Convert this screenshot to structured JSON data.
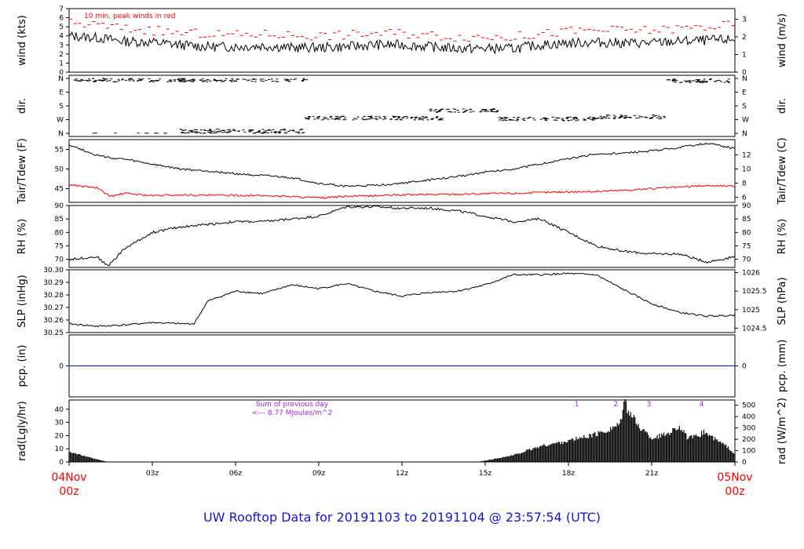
{
  "title": "UW Rooftop Data for 20191103  to  20191104 @ 23:57:54  (UTC)",
  "colors": {
    "black": "#000000",
    "red": "#ff0000",
    "blue": "#0000ff",
    "purple": "#a020f0",
    "title": "#1414d2"
  },
  "x_axis": {
    "start_label": [
      "04Nov",
      "00z"
    ],
    "end_label": [
      "05Nov",
      "00z"
    ],
    "ticks": [
      "03z",
      "06z",
      "09z",
      "12z",
      "15z",
      "18z",
      "21z"
    ]
  },
  "chart_data": [
    {
      "type": "line",
      "panel": "wind",
      "ylabel_left": "wind (kts)",
      "ylabel_right": "wind (m/s)",
      "ylim": [
        0,
        7
      ],
      "yticks_left": [
        0,
        1,
        2,
        3,
        4,
        5,
        6,
        7
      ],
      "yticks_right": [
        "0",
        "1",
        "2",
        "3"
      ],
      "annotation": "10 min. peak winds in red",
      "x_hours": [
        0,
        1,
        2,
        3,
        4,
        5,
        6,
        7,
        8,
        9,
        10,
        11,
        12,
        13,
        14,
        15,
        16,
        17,
        18,
        19,
        20,
        21,
        22,
        23,
        24
      ],
      "series": [
        {
          "values": [
            4.0,
            3.8,
            3.4,
            3.3,
            3.0,
            2.8,
            2.8,
            2.9,
            2.7,
            2.7,
            2.8,
            3.0,
            3.0,
            2.8,
            2.6,
            2.6,
            2.6,
            3.0,
            3.2,
            3.3,
            3.2,
            3.2,
            3.4,
            3.5,
            3.6
          ],
          "color": "#000000"
        },
        {
          "values": [
            5.4,
            5.2,
            4.8,
            4.6,
            4.3,
            4.2,
            4.1,
            4.2,
            4.1,
            4.0,
            4.1,
            4.3,
            4.3,
            4.1,
            3.9,
            3.9,
            3.9,
            4.2,
            4.5,
            4.6,
            4.6,
            4.6,
            4.8,
            5.0,
            5.2
          ],
          "color": "#ff0000"
        }
      ]
    },
    {
      "type": "scatter",
      "panel": "direction",
      "ylabel_left": "dir.",
      "ylabel_right": "dir.",
      "yticks_left": [
        "N",
        "W",
        "S",
        "E",
        "N"
      ],
      "yticks_right": [
        "N",
        "W",
        "S",
        "E",
        "N"
      ],
      "segments": [
        {
          "x": [
            0.2,
            8.8
          ],
          "dir": 350
        },
        {
          "x": [
            4.0,
            8.5
          ],
          "dir": 15
        },
        {
          "x": [
            8.5,
            13.5
          ],
          "dir": 100
        },
        {
          "x": [
            13.0,
            15.5
          ],
          "dir": 150
        },
        {
          "x": [
            15.5,
            19.0
          ],
          "dir": 95
        },
        {
          "x": [
            19.0,
            21.5
          ],
          "dir": 108
        },
        {
          "x": [
            21.5,
            23.8
          ],
          "dir": 345
        }
      ]
    },
    {
      "type": "line",
      "panel": "temperature",
      "ylabel_left": "Tair/Tdew (F)",
      "ylabel_right": "Tair/Tdew (C)",
      "ylim": [
        41.5,
        57.5
      ],
      "yticks_left": [
        45,
        50,
        55
      ],
      "yticks_right": [
        "6",
        "8",
        "10",
        "12"
      ],
      "x_hours": [
        0,
        1,
        1.5,
        2,
        3,
        4,
        5,
        6,
        7,
        8,
        9,
        10,
        11,
        12,
        13,
        14,
        15,
        16,
        17,
        18,
        19,
        20,
        21,
        22,
        23,
        24
      ],
      "series": [
        {
          "name": "Tair",
          "values": [
            56.2,
            53.5,
            52.8,
            52.5,
            51.2,
            50.0,
            49.5,
            48.8,
            48.3,
            47.8,
            46.3,
            45.6,
            45.8,
            46.4,
            47.2,
            48.1,
            49.2,
            50.0,
            51.3,
            52.6,
            53.8,
            54.0,
            54.6,
            55.5,
            56.6,
            55.2
          ],
          "color": "#000000"
        },
        {
          "name": "Tdew",
          "values": [
            46.0,
            45.2,
            43.0,
            43.8,
            43.2,
            43.4,
            43.3,
            43.3,
            43.2,
            43.0,
            42.6,
            43.0,
            43.2,
            43.4,
            43.5,
            43.6,
            43.7,
            43.8,
            44.0,
            44.2,
            44.3,
            44.6,
            45.0,
            45.4,
            45.8,
            45.6
          ],
          "color": "#ff0000"
        }
      ]
    },
    {
      "type": "line",
      "panel": "humidity",
      "ylabel_left": "RH (%)",
      "ylabel_right": "RH (%)",
      "ylim": [
        67,
        90
      ],
      "yticks_left": [
        70,
        75,
        80,
        85,
        90
      ],
      "yticks_right": [
        "70",
        "75",
        "80",
        "85",
        "90"
      ],
      "x_hours": [
        0,
        1,
        1.4,
        2,
        3,
        4,
        5,
        6,
        7,
        8,
        9,
        10,
        11,
        12,
        13,
        14,
        15,
        16,
        17,
        18,
        19,
        20,
        21,
        22,
        23,
        24
      ],
      "series": [
        {
          "values": [
            70,
            71,
            67.5,
            74,
            80,
            82,
            83,
            84,
            84,
            85,
            86,
            89.5,
            89.5,
            89,
            89,
            88,
            86,
            84,
            85,
            80,
            75,
            73,
            72,
            72,
            69,
            71
          ],
          "color": "#000000"
        }
      ]
    },
    {
      "type": "line",
      "panel": "pressure",
      "ylabel_left": "SLP (inHg)",
      "ylabel_right": "SLP (hPa)",
      "ylim": [
        30.25,
        30.3
      ],
      "yticks_left": [
        "30.25",
        "30.26",
        "30.27",
        "30.28",
        "30.29",
        "30.30"
      ],
      "yticks_right": [
        "1024.5",
        "1025",
        "1025.5",
        "1026"
      ],
      "x_hours": [
        0,
        1,
        2,
        3,
        4,
        4.5,
        5,
        6,
        7,
        8,
        9,
        10,
        11,
        12,
        13,
        14,
        15,
        16,
        17,
        18,
        19,
        20,
        21,
        22,
        23,
        24
      ],
      "series": [
        {
          "values": [
            30.257,
            30.255,
            30.256,
            30.258,
            30.257,
            30.257,
            30.275,
            30.283,
            30.281,
            30.288,
            30.285,
            30.289,
            30.283,
            30.279,
            30.282,
            30.283,
            30.288,
            30.296,
            30.296,
            30.297,
            30.296,
            30.284,
            30.273,
            30.266,
            30.263,
            30.264
          ],
          "color": "#000000"
        }
      ]
    },
    {
      "type": "line",
      "panel": "precipitation",
      "ylabel_left": "pcp. (in)",
      "ylabel_right": "pcp. (mm)",
      "ylim": [
        -0.06,
        0.06
      ],
      "yticks_left": [
        0
      ],
      "yticks_right": [
        "0"
      ],
      "x_hours": [
        0,
        24
      ],
      "series": [
        {
          "values": [
            0,
            0
          ],
          "color": "#0000ff"
        }
      ]
    },
    {
      "type": "area",
      "panel": "radiation",
      "ylabel_left": "rad(Lgly/hr)",
      "ylabel_right": "rad (W/m^2)",
      "ylim": [
        0,
        47
      ],
      "yticks_left": [
        0,
        10,
        20,
        30,
        40
      ],
      "yticks_right": [
        "0",
        "100",
        "200",
        "300",
        "400",
        "500"
      ],
      "annotations": [
        "Sum of previous day",
        "<--- 8.77 MJoules/m^2"
      ],
      "markers": [
        "1",
        "2",
        "3",
        "4"
      ],
      "marker_hours": [
        18.3,
        19.7,
        20.9,
        22.8
      ],
      "x_hours": [
        0,
        0.3,
        0.8,
        1.4,
        14.7,
        15.0,
        16.0,
        17.0,
        18.0,
        19.0,
        19.5,
        19.9,
        20.0,
        20.2,
        20.5,
        21.0,
        21.5,
        22.0,
        22.3,
        22.6,
        22.9,
        23.3,
        23.7,
        24
      ],
      "series": [
        {
          "values": [
            8,
            6,
            3,
            0,
            0,
            1,
            5,
            12,
            16,
            21,
            25,
            30,
            45,
            38,
            28,
            18,
            21,
            27,
            18,
            19,
            23,
            17,
            12,
            6
          ],
          "color": "#000000"
        }
      ]
    }
  ]
}
